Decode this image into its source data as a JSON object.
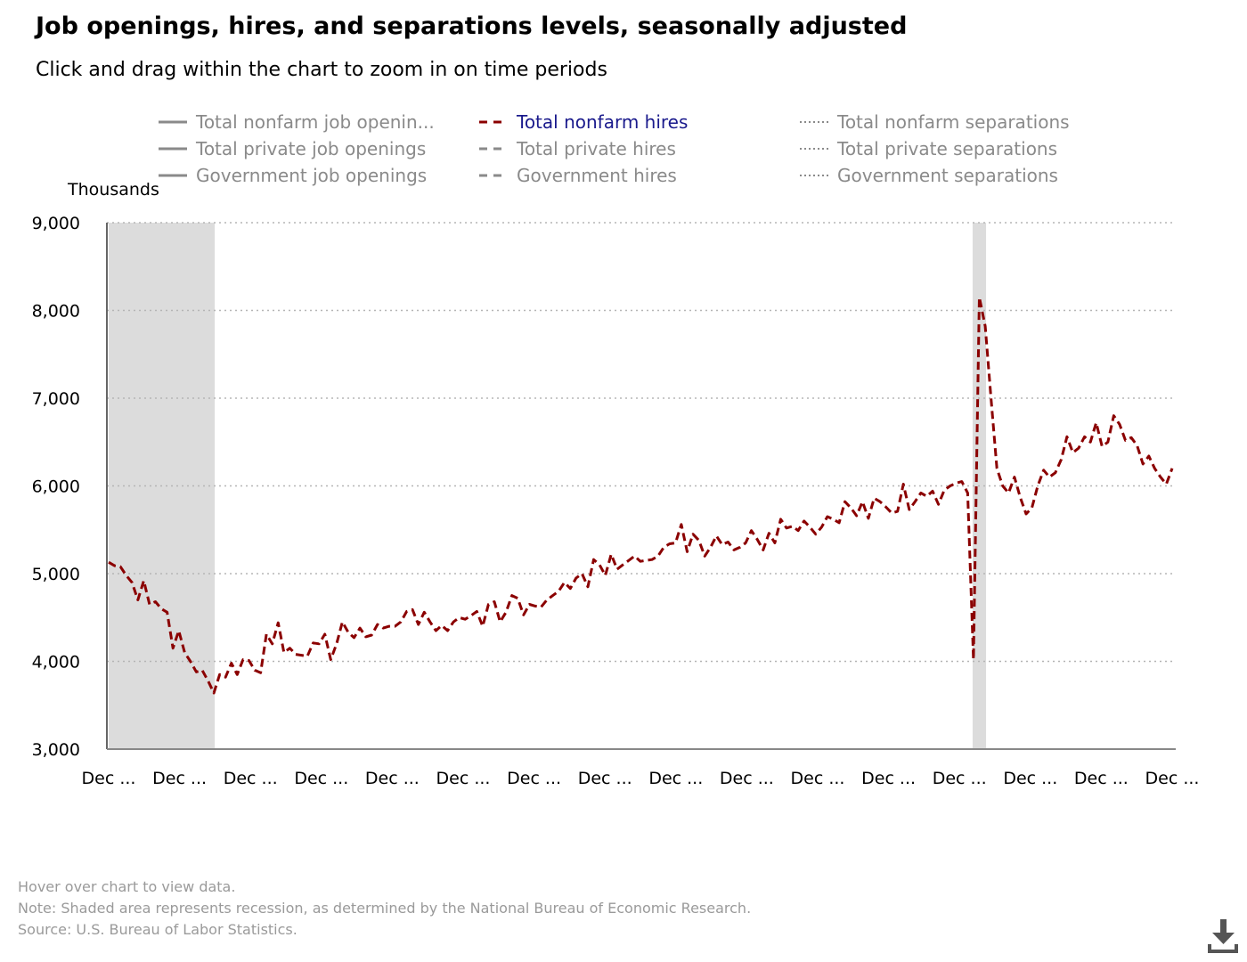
{
  "header": {
    "title": "Job openings, hires, and separations levels, seasonally adjusted",
    "subtitle": "Click and drag within the chart to zoom in on time periods"
  },
  "footer": {
    "hover": "Hover over chart to view data.",
    "note": "Note: Shaded area represents recession, as determined by the National Bureau of Economic Research.",
    "source": "Source: U.S. Bureau of Labor Statistics."
  },
  "legend": [
    {
      "label": "Total nonfarm job openin...",
      "style": "solid",
      "active": false
    },
    {
      "label": "Total nonfarm hires",
      "style": "dashed",
      "active": true
    },
    {
      "label": "Total nonfarm separations",
      "style": "dotted",
      "active": false
    },
    {
      "label": "Total private job openings",
      "style": "solid",
      "active": false
    },
    {
      "label": "Total private hires",
      "style": "dashed",
      "active": false
    },
    {
      "label": "Total private separations",
      "style": "dotted",
      "active": false
    },
    {
      "label": "Government job openings",
      "style": "solid",
      "active": false
    },
    {
      "label": "Government hires",
      "style": "dashed",
      "active": false
    },
    {
      "label": "Government separations",
      "style": "dotted",
      "active": false
    }
  ],
  "colors": {
    "series_active": "#8b0000",
    "legend_active_text": "#1a1a8c",
    "legend_inactive": "#8a8a8a",
    "recession": "#dcdcdc",
    "grid": "#b5b5b5"
  },
  "icons": {
    "download": "download-icon"
  },
  "chart_data": {
    "type": "line",
    "ylabel": "Thousands",
    "ylim": [
      3000,
      9000
    ],
    "yticks": [
      "3,000",
      "4,000",
      "5,000",
      "6,000",
      "7,000",
      "8,000",
      "9,000"
    ],
    "yticks_values": [
      3000,
      4000,
      5000,
      6000,
      7000,
      8000,
      9000
    ],
    "xticks": [
      "Dec ...",
      "Dec ...",
      "Dec ...",
      "Dec ...",
      "Dec ...",
      "Dec ...",
      "Dec ...",
      "Dec ...",
      "Dec ...",
      "Dec ...",
      "Dec ...",
      "Dec ...",
      "Dec ...",
      "Dec ...",
      "Dec ...",
      "Dec ..."
    ],
    "grid": "horizontal dotted",
    "legend_position": "top",
    "recessions": [
      [
        0,
        18
      ],
      [
        148,
        150
      ]
    ],
    "series": [
      {
        "name": "Total nonfarm hires",
        "style": "dashed",
        "values": [
          5130,
          5090,
          5080,
          4980,
          4900,
          4700,
          4920,
          4650,
          4680,
          4600,
          4560,
          4150,
          4350,
          4100,
          4000,
          3880,
          3900,
          3780,
          3640,
          3850,
          3820,
          3980,
          3850,
          4020,
          4010,
          3900,
          3870,
          4310,
          4200,
          4440,
          4100,
          4150,
          4080,
          4070,
          4060,
          4210,
          4200,
          4310,
          4020,
          4200,
          4450,
          4330,
          4270,
          4380,
          4280,
          4300,
          4420,
          4380,
          4400,
          4400,
          4450,
          4570,
          4590,
          4420,
          4560,
          4450,
          4350,
          4410,
          4350,
          4450,
          4500,
          4480,
          4520,
          4570,
          4400,
          4650,
          4680,
          4450,
          4560,
          4750,
          4720,
          4530,
          4650,
          4630,
          4620,
          4700,
          4750,
          4800,
          4900,
          4830,
          4950,
          5000,
          4850,
          5160,
          5100,
          4980,
          5220,
          5050,
          5100,
          5150,
          5200,
          5140,
          5150,
          5160,
          5200,
          5300,
          5340,
          5350,
          5560,
          5250,
          5450,
          5380,
          5200,
          5300,
          5430,
          5330,
          5360,
          5270,
          5300,
          5350,
          5490,
          5390,
          5270,
          5460,
          5350,
          5620,
          5520,
          5540,
          5490,
          5600,
          5530,
          5450,
          5530,
          5650,
          5620,
          5580,
          5820,
          5750,
          5660,
          5820,
          5630,
          5860,
          5820,
          5760,
          5690,
          5710,
          6020,
          5730,
          5820,
          5920,
          5880,
          5940,
          5790,
          5950,
          6000,
          6030,
          6050,
          5920,
          4020,
          8150,
          7820,
          7000,
          6200,
          6000,
          5920,
          6100,
          5870,
          5680,
          5750,
          6000,
          6180,
          6100,
          6150,
          6300,
          6560,
          6380,
          6430,
          6560,
          6500,
          6720,
          6450,
          6500,
          6800,
          6700,
          6520,
          6550,
          6460,
          6250,
          6340,
          6200,
          6100,
          6020,
          6200
        ]
      }
    ]
  }
}
